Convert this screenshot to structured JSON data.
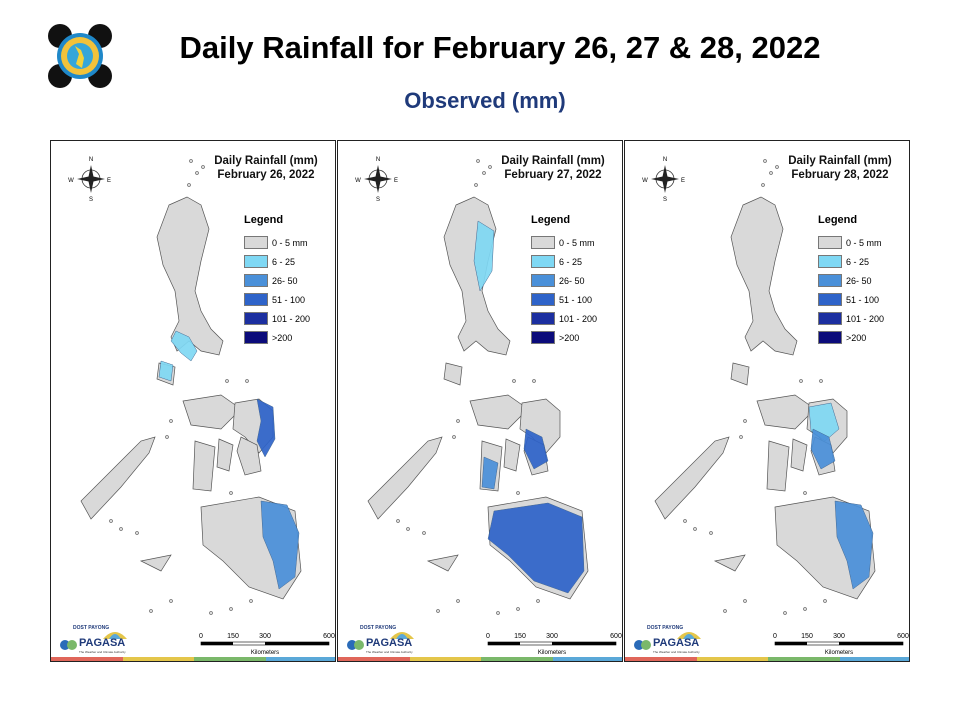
{
  "header": {
    "title": "Daily Rainfall for February 26, 27 & 28, 2022",
    "subtitle": "Observed (mm)",
    "logo_icon": "pagasa-seal-icon"
  },
  "panels": [
    {
      "title_line1": "Daily Rainfall (mm)",
      "title_line2": "February 26, 2022",
      "rain_zones": [
        {
          "region": "Bicol",
          "class": "6 - 25"
        },
        {
          "region": "Mindoro",
          "class": "6 - 25"
        },
        {
          "region": "Eastern Samar",
          "class": "51 - 100"
        },
        {
          "region": "Mindanao East",
          "class": "26- 50"
        }
      ]
    },
    {
      "title_line1": "Daily Rainfall (mm)",
      "title_line2": "February 27, 2022",
      "rain_zones": [
        {
          "region": "Northeast Luzon",
          "class": "6 - 25"
        },
        {
          "region": "Leyte",
          "class": "51 - 100"
        },
        {
          "region": "Negros",
          "class": "26- 50"
        },
        {
          "region": "Mindanao",
          "class": "51 - 100"
        }
      ]
    },
    {
      "title_line1": "Daily Rainfall (mm)",
      "title_line2": "February 28, 2022",
      "rain_zones": [
        {
          "region": "Samar",
          "class": "6 - 25"
        },
        {
          "region": "Leyte",
          "class": "26- 50"
        },
        {
          "region": "Mindanao East",
          "class": "26- 50"
        }
      ]
    }
  ],
  "map": {
    "north_label": "N",
    "south_label": "S",
    "east_label": "E",
    "west_label": "W",
    "legend_title": "Legend",
    "legend": [
      {
        "label": "0 - 5 mm",
        "color": "#d9d9d9"
      },
      {
        "label": "6 - 25",
        "color": "#7fd8f4"
      },
      {
        "label": "26- 50",
        "color": "#4a90d9"
      },
      {
        "label": "51 - 100",
        "color": "#2e63c9"
      },
      {
        "label": "101 - 200",
        "color": "#1c2fa0"
      },
      {
        "label": ">200",
        "color": "#0b0b7a"
      }
    ],
    "scale_ticks": [
      "0",
      "150",
      "300",
      "600"
    ],
    "scale_unit": "Kilometers",
    "brand_top": "DOST PAYONG",
    "brand_name": "PAGASA",
    "brand_tagline": "The Weather and Climate Authority",
    "strip_colors": [
      "#e0665a",
      "#e4c64a",
      "#7ab86a",
      "#5aa8d8"
    ]
  }
}
